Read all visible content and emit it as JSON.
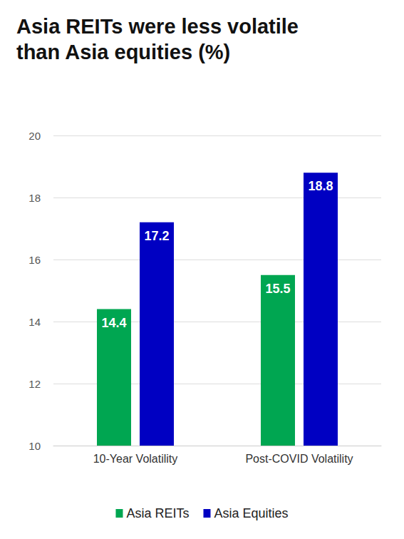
{
  "chart_data": {
    "type": "bar",
    "title": "Asia REITs were less volatile than Asia equities (%)",
    "categories": [
      "10-Year Volatility",
      "Post-COVID Volatility"
    ],
    "series": [
      {
        "name": "Asia REITs",
        "color": "#00a651",
        "values": [
          14.4,
          15.5
        ]
      },
      {
        "name": "Asia Equities",
        "color": "#0000c2",
        "values": [
          17.2,
          18.8
        ]
      }
    ],
    "ylim": [
      10,
      20
    ],
    "yticks": [
      10,
      12,
      14,
      16,
      18,
      20
    ],
    "grid": true,
    "legend": "bottom",
    "data_labels": true
  }
}
